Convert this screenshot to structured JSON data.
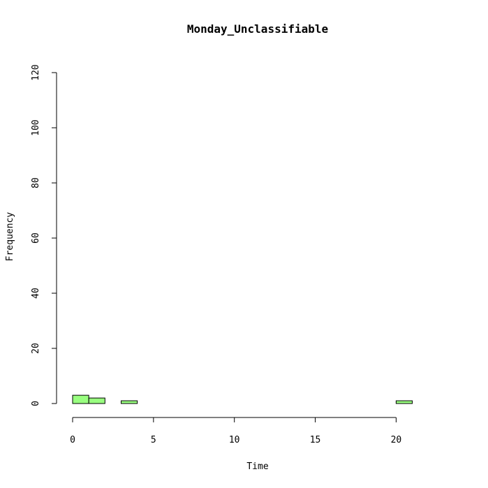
{
  "chart_data": {
    "type": "bar",
    "title": "Monday_Unclassifiable",
    "xlabel": "Time",
    "ylabel": "Frequency",
    "bins": [
      {
        "x0": 0,
        "x1": 1,
        "count": 3
      },
      {
        "x0": 1,
        "x1": 2,
        "count": 2
      },
      {
        "x0": 2,
        "x1": 3,
        "count": 0
      },
      {
        "x0": 3,
        "x1": 4,
        "count": 1
      },
      {
        "x0": 4,
        "x1": 5,
        "count": 0
      },
      {
        "x0": 5,
        "x1": 6,
        "count": 0
      },
      {
        "x0": 6,
        "x1": 7,
        "count": 0
      },
      {
        "x0": 7,
        "x1": 8,
        "count": 0
      },
      {
        "x0": 8,
        "x1": 9,
        "count": 0
      },
      {
        "x0": 9,
        "x1": 10,
        "count": 0
      },
      {
        "x0": 10,
        "x1": 11,
        "count": 0
      },
      {
        "x0": 11,
        "x1": 12,
        "count": 0
      },
      {
        "x0": 12,
        "x1": 13,
        "count": 0
      },
      {
        "x0": 13,
        "x1": 14,
        "count": 0
      },
      {
        "x0": 14,
        "x1": 15,
        "count": 0
      },
      {
        "x0": 15,
        "x1": 16,
        "count": 0
      },
      {
        "x0": 16,
        "x1": 17,
        "count": 0
      },
      {
        "x0": 17,
        "x1": 18,
        "count": 0
      },
      {
        "x0": 18,
        "x1": 19,
        "count": 0
      },
      {
        "x0": 19,
        "x1": 20,
        "count": 0
      },
      {
        "x0": 20,
        "x1": 21,
        "count": 1
      },
      {
        "x0": 21,
        "x1": 22,
        "count": 0
      },
      {
        "x0": 22,
        "x1": 23,
        "count": 0
      },
      {
        "x0": 23,
        "x1": 24,
        "count": 0
      }
    ],
    "xlim": [
      0,
      24
    ],
    "ylim": [
      0,
      120
    ],
    "xticks": [
      "0",
      "5",
      "10",
      "15",
      "20"
    ],
    "yticks": [
      "0",
      "20",
      "40",
      "60",
      "80",
      "100",
      "120"
    ],
    "bar_color": "#99ff80",
    "grid": false
  }
}
